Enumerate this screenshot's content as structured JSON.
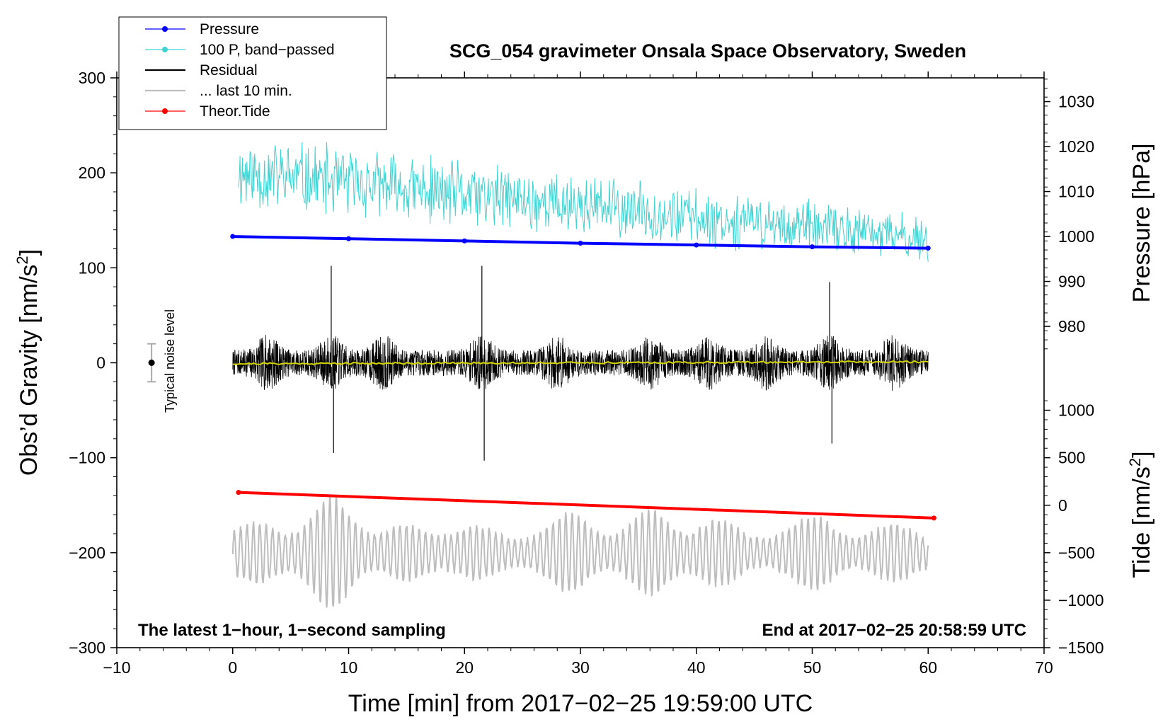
{
  "chart_data": {
    "type": "line",
    "title": "SCG_054 gravimeter Onsala Space Observatory, Sweden",
    "xlabel": "Time [min] from 2017−02−25 19:59:00 UTC",
    "ylabel_left_main": "Obs’d Gravity [nm/s",
    "ylabel_left_sup": "2",
    "ylabel_left_close": "]",
    "ylabel_right_pressure": "Pressure [hPa]",
    "ylabel_right_tide_main": "Tide [nm/s",
    "ylabel_right_tide_sup": "2",
    "ylabel_right_tide_close": "]",
    "xlim": [
      -10,
      70
    ],
    "ylim_left": [
      -300,
      300
    ],
    "x_ticks": [
      -10,
      0,
      10,
      20,
      30,
      40,
      50,
      60,
      70
    ],
    "x_tick_labels": [
      "−10",
      "0",
      "10",
      "20",
      "30",
      "40",
      "50",
      "60",
      "70"
    ],
    "y_ticks_left": [
      300,
      200,
      100,
      0,
      -100,
      -200,
      -300
    ],
    "y_tick_labels_left": [
      "300",
      "200",
      "100",
      "0",
      "−100",
      "−200",
      "−300"
    ],
    "pressure_axis": {
      "ticks": [
        980,
        990,
        1000,
        1010,
        1020,
        1030
      ],
      "tick_labels": [
        "980",
        "990",
        "1000",
        "1010",
        "1020",
        "1030"
      ],
      "map_left_units": {
        "value_a": 1000,
        "at_a": 133,
        "value_b": 1030,
        "at_b": 275
      }
    },
    "tide_axis": {
      "ticks": [
        1000,
        500,
        0,
        -500,
        -1000,
        -1500
      ],
      "tick_labels": [
        "1000",
        "500",
        "0",
        "−500",
        "−1000",
        "−1500"
      ],
      "map_left_units": {
        "value_a": 0,
        "at_a": -150,
        "value_b": -1500,
        "at_b": -300
      }
    },
    "legend_position": "top-left",
    "legend": [
      {
        "label": "Pressure",
        "color": "#0000ff",
        "marker": true
      },
      {
        "label": "100 P, band−passed",
        "color": "#3fd3d3",
        "marker": true
      },
      {
        "label": "Residual",
        "color": "#000000",
        "marker": false
      },
      {
        "label": "... last 10 min.",
        "color": "#bdbdbd",
        "marker": false
      },
      {
        "label": "Theor.Tide",
        "color": "#ff0000",
        "marker": true
      }
    ],
    "noise_level": {
      "label": "Typical noise level",
      "x": -7,
      "center": 0,
      "range": [
        -20,
        20
      ]
    },
    "footer_left": "The latest 1−hour, 1−second sampling",
    "footer_right": "End at 2017−02−25 20:58:59 UTC",
    "series": [
      {
        "name": "Pressure",
        "unit": "hPa",
        "color": "#0000ff",
        "x": [
          0,
          10,
          20,
          30,
          40,
          50,
          60
        ],
        "values": [
          1000.0,
          999.5,
          999.0,
          998.5,
          998.1,
          997.7,
          997.4
        ]
      },
      {
        "name": "100 P, band−passed",
        "unit": "nm/s2 (left axis)",
        "color": "#3fd3d3",
        "x": [
          0,
          60
        ],
        "trend": [
          200,
          130
        ],
        "amplitude": [
          45,
          28
        ]
      },
      {
        "name": "Residual",
        "unit": "nm/s2 (left axis)",
        "color": "#000000",
        "x": [
          0,
          60
        ],
        "baseline": 0,
        "amplitude": 30,
        "peaks": [
          {
            "x": 8.5,
            "y": 102
          },
          {
            "x": 8.7,
            "y": -95
          },
          {
            "x": 21.5,
            "y": 102
          },
          {
            "x": 21.7,
            "y": -103
          },
          {
            "x": 51.5,
            "y": 85
          },
          {
            "x": 51.7,
            "y": -85
          }
        ]
      },
      {
        "name": "Residual (smoothed)",
        "unit": "nm/s2 (left axis)",
        "color": "#d4d400",
        "x": [
          0,
          60
        ],
        "values": [
          -1,
          1
        ]
      },
      {
        "name": "... last 10 min.",
        "unit": "nm/s2 (left axis)",
        "color": "#bdbdbd",
        "x": [
          0,
          60
        ],
        "center": -200,
        "amplitude": 35
      },
      {
        "name": "Theor.Tide",
        "unit": "nm/s2 (tide axis)",
        "color": "#ff0000",
        "x": [
          0.5,
          60.5
        ],
        "values": [
          135,
          -135
        ]
      }
    ]
  }
}
